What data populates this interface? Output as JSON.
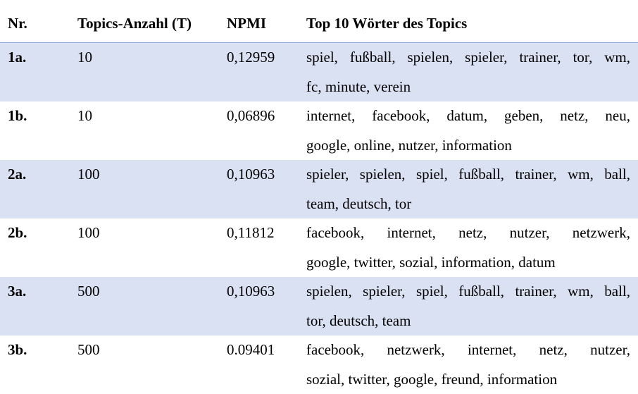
{
  "header": {
    "nr": "Nr.",
    "topics": "Topics-Anzahl (T)",
    "npmi": "NPMI",
    "words": "Top 10 Wörter des Topics"
  },
  "rows": [
    {
      "nr": "1a.",
      "topics": "10",
      "npmi": "0,12959",
      "words_line1": "spiel, fußball, spielen, spieler, trainer, tor, wm,",
      "words_line2": "fc, minute, verein"
    },
    {
      "nr": "1b.",
      "topics": "10",
      "npmi": "0,06896",
      "words_line1": "internet, facebook, datum, geben, netz, neu,",
      "words_line2": "google, online, nutzer, information"
    },
    {
      "nr": "2a.",
      "topics": "100",
      "npmi": "0,10963",
      "words_line1": "spieler, spielen, spiel, fußball, trainer, wm, ball,",
      "words_line2": "team, deutsch, tor"
    },
    {
      "nr": "2b.",
      "topics": "100",
      "npmi": "0,11812",
      "words_line1": "facebook, internet, netz, nutzer, netzwerk,",
      "words_line2": "google, twitter, sozial, information, datum"
    },
    {
      "nr": "3a.",
      "topics": "500",
      "npmi": "0,10963",
      "words_line1": "spielen, spieler, spiel, fußball, trainer, wm, ball,",
      "words_line2": "tor, deutsch, team"
    },
    {
      "nr": "3b.",
      "topics": "500",
      "npmi": "0.09401",
      "words_line1": "facebook, netzwerk, internet, netz, nutzer,",
      "words_line2": "sozial, twitter, google, freund, information"
    }
  ]
}
